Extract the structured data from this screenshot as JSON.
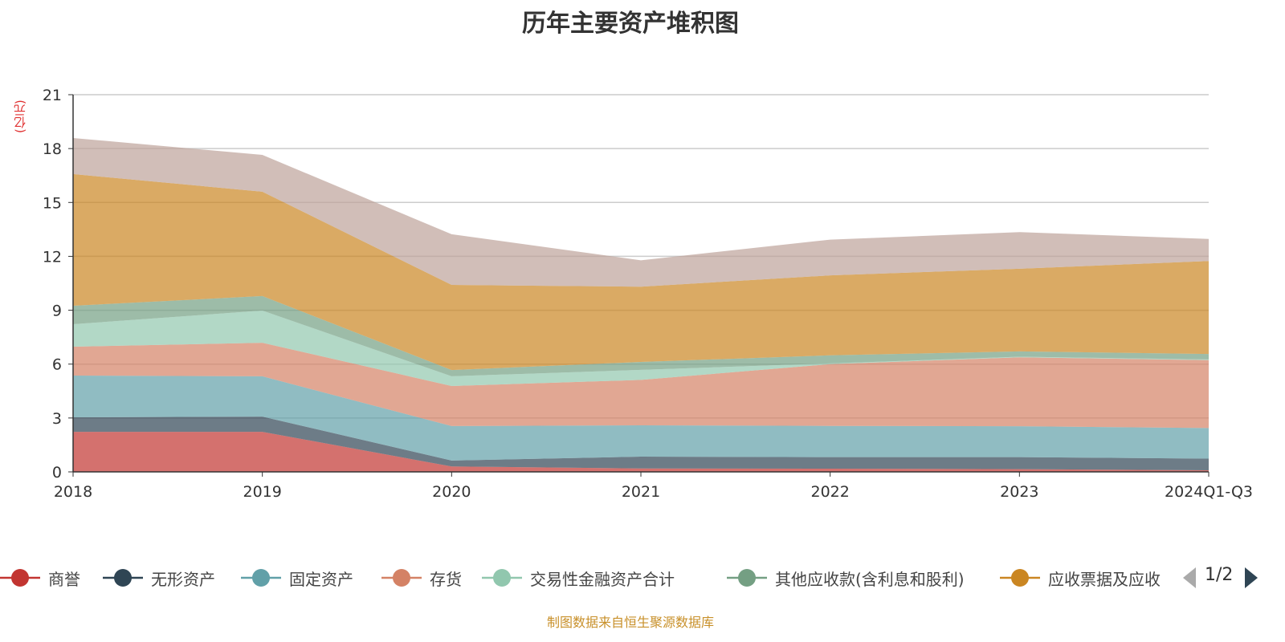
{
  "chart_data": {
    "type": "area",
    "stacked": true,
    "title": "历年主要资产堆积图",
    "ylabel": "(亿元)",
    "xlabel": "",
    "categories": [
      "2018",
      "2019",
      "2020",
      "2021",
      "2022",
      "2023",
      "2024Q1-Q3"
    ],
    "ylim": [
      0,
      21
    ],
    "yticks": [
      0,
      3,
      6,
      9,
      12,
      15,
      18,
      21
    ],
    "grid": true,
    "legend_position": "bottom",
    "series": [
      {
        "name": "商誉",
        "color": "#c23531",
        "values": [
          2.23,
          2.23,
          0.3,
          0.19,
          0.18,
          0.15,
          0.09
        ]
      },
      {
        "name": "无形资产",
        "color": "#2f4554",
        "values": [
          0.81,
          0.85,
          0.33,
          0.66,
          0.64,
          0.67,
          0.65
        ]
      },
      {
        "name": "固定资产",
        "color": "#61a0a8",
        "values": [
          2.32,
          2.24,
          1.92,
          1.74,
          1.74,
          1.72,
          1.7
        ]
      },
      {
        "name": "存货",
        "color": "#d48265",
        "values": [
          1.61,
          1.87,
          2.23,
          2.53,
          3.44,
          3.84,
          3.78
        ]
      },
      {
        "name": "交易性金融资产合计",
        "color": "#91c7ae",
        "values": [
          1.25,
          1.79,
          0.54,
          0.56,
          0.04,
          0.03,
          0.04
        ]
      },
      {
        "name": "其他应收款(含利息和股利)",
        "color": "#749f83",
        "values": [
          1.03,
          0.81,
          0.35,
          0.44,
          0.45,
          0.3,
          0.3
        ]
      },
      {
        "name": "应收票据及应收",
        "color": "#ca8622",
        "values": [
          7.33,
          5.81,
          4.74,
          4.19,
          4.45,
          4.6,
          5.18
        ]
      },
      {
        "name": "",
        "color": "#bda29a",
        "values": [
          2.01,
          2.05,
          2.82,
          1.47,
          1.99,
          2.04,
          1.23
        ]
      }
    ]
  },
  "legend": {
    "page": "1/2"
  },
  "footer": "制图数据来自恒生聚源数据库"
}
